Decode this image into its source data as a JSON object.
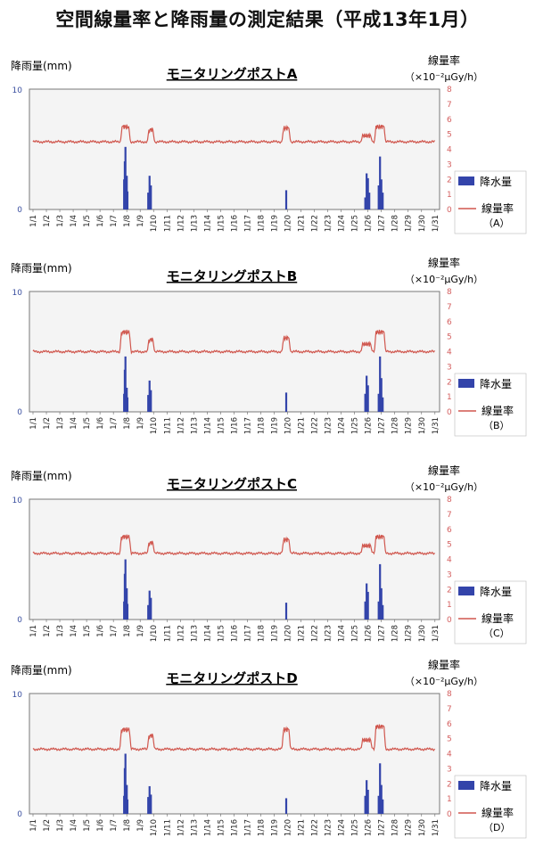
{
  "page_title": "空間線量率と降雨量の測定結果（平成13年1月）",
  "colors": {
    "rain": "#3344aa",
    "dose": "#d0574e",
    "plot_border": "#777777"
  },
  "chart_data": [
    {
      "type": "bar+line",
      "title": "モニタリングポストA",
      "ylabel_left": "降雨量(mm)",
      "ylabel_right_line1": "線量率",
      "ylabel_right_line2": "（×10⁻²μGy/h）",
      "left_ticks": [
        "10",
        "0"
      ],
      "left_ylim": [
        0,
        10
      ],
      "right_ylim": [
        0,
        8
      ],
      "right_ticks": [
        "8",
        "7",
        "6",
        "5",
        "4",
        "3",
        "2",
        "1",
        "0"
      ],
      "x_ticks": [
        "1/1",
        "1/2",
        "1/3",
        "1/4",
        "1/5",
        "1/6",
        "1/7",
        "1/8",
        "1/9",
        "1/10",
        "1/11",
        "1/12",
        "1/13",
        "1/14",
        "1/15",
        "1/16",
        "1/17",
        "1/18",
        "1/19",
        "1/20",
        "1/21",
        "1/22",
        "1/23",
        "1/24",
        "1/25",
        "1/26",
        "1/27",
        "1/28",
        "1/29",
        "1/30",
        "1/31"
      ],
      "legend_rain": "降水量",
      "legend_dose": "線量率",
      "legend_sub": "（A）",
      "rain": [
        [
          7.8,
          2.5
        ],
        [
          7.85,
          4.0
        ],
        [
          7.9,
          5.2
        ],
        [
          8.0,
          2.8
        ],
        [
          8.05,
          1.5
        ],
        [
          9.6,
          1.4
        ],
        [
          9.7,
          2.8
        ],
        [
          9.8,
          2.0
        ],
        [
          19.9,
          1.6
        ],
        [
          25.8,
          1.0
        ],
        [
          25.9,
          3.0
        ],
        [
          26.0,
          2.6
        ],
        [
          26.1,
          1.4
        ],
        [
          26.8,
          2.0
        ],
        [
          26.9,
          4.4
        ],
        [
          27.0,
          2.5
        ],
        [
          27.1,
          1.4
        ]
      ],
      "dose_base": 4.5,
      "dose_peaks": [
        [
          7.9,
          5.5,
          0.25
        ],
        [
          9.8,
          5.3,
          0.15
        ],
        [
          19.9,
          5.4,
          0.2
        ],
        [
          25.9,
          4.9,
          0.3
        ],
        [
          26.9,
          5.5,
          0.3
        ]
      ]
    },
    {
      "type": "bar+line",
      "title": "モニタリングポストB",
      "ylabel_left": "降雨量(mm)",
      "ylabel_right_line1": "線量率",
      "ylabel_right_line2": "（×10⁻²μGy/h）",
      "left_ticks": [
        "10",
        "0"
      ],
      "left_ylim": [
        0,
        10
      ],
      "right_ylim": [
        0,
        8
      ],
      "right_ticks": [
        "8",
        "7",
        "6",
        "5",
        "4",
        "3",
        "2",
        "1",
        "0"
      ],
      "x_ticks": [
        "1/1",
        "1/2",
        "1/3",
        "1/4",
        "1/5",
        "1/6",
        "1/7",
        "1/8",
        "1/9",
        "1/10",
        "1/11",
        "1/12",
        "1/13",
        "1/14",
        "1/15",
        "1/16",
        "1/17",
        "1/18",
        "1/19",
        "1/20",
        "1/21",
        "1/22",
        "1/23",
        "1/24",
        "1/25",
        "1/26",
        "1/27",
        "1/28",
        "1/29",
        "1/30",
        "1/31"
      ],
      "legend_rain": "降水量",
      "legend_dose": "線量率",
      "legend_sub": "（B）",
      "rain": [
        [
          7.8,
          1.5
        ],
        [
          7.85,
          3.5
        ],
        [
          7.9,
          4.6
        ],
        [
          8.0,
          2.0
        ],
        [
          8.05,
          1.2
        ],
        [
          9.6,
          1.4
        ],
        [
          9.7,
          2.6
        ],
        [
          9.8,
          1.8
        ],
        [
          19.9,
          1.6
        ],
        [
          25.8,
          1.5
        ],
        [
          25.9,
          3.0
        ],
        [
          26.0,
          2.2
        ],
        [
          26.8,
          1.5
        ],
        [
          26.9,
          4.6
        ],
        [
          27.0,
          2.8
        ],
        [
          27.1,
          1.2
        ]
      ],
      "dose_base": 4.0,
      "dose_peaks": [
        [
          7.9,
          5.3,
          0.3
        ],
        [
          9.8,
          4.8,
          0.15
        ],
        [
          19.9,
          4.9,
          0.2
        ],
        [
          25.9,
          4.5,
          0.3
        ],
        [
          26.9,
          5.3,
          0.3
        ]
      ]
    },
    {
      "type": "bar+line",
      "title": "モニタリングポストC",
      "ylabel_left": "降雨量(mm)",
      "ylabel_right_line1": "線量率",
      "ylabel_right_line2": "（×10⁻²μGy/h）",
      "left_ticks": [
        "10",
        "0"
      ],
      "left_ylim": [
        0,
        10
      ],
      "right_ylim": [
        0,
        8
      ],
      "right_ticks": [
        "8",
        "7",
        "6",
        "5",
        "4",
        "3",
        "2",
        "1",
        "0"
      ],
      "x_ticks": [
        "1/1",
        "1/2",
        "1/3",
        "1/4",
        "1/5",
        "1/6",
        "1/7",
        "1/8",
        "1/9",
        "1/10",
        "1/11",
        "1/12",
        "1/13",
        "1/14",
        "1/15",
        "1/16",
        "1/17",
        "1/18",
        "1/19",
        "1/20",
        "1/21",
        "1/22",
        "1/23",
        "1/24",
        "1/25",
        "1/26",
        "1/27",
        "1/28",
        "1/29",
        "1/30",
        "1/31"
      ],
      "legend_rain": "降水量",
      "legend_dose": "線量率",
      "legend_sub": "（C）",
      "rain": [
        [
          7.8,
          1.5
        ],
        [
          7.85,
          3.8
        ],
        [
          7.9,
          5.0
        ],
        [
          8.0,
          2.6
        ],
        [
          8.05,
          1.3
        ],
        [
          9.6,
          1.2
        ],
        [
          9.7,
          2.4
        ],
        [
          9.8,
          1.8
        ],
        [
          19.9,
          1.4
        ],
        [
          25.8,
          1.5
        ],
        [
          25.9,
          3.0
        ],
        [
          26.0,
          2.3
        ],
        [
          26.8,
          1.5
        ],
        [
          26.9,
          4.6
        ],
        [
          27.0,
          2.6
        ],
        [
          27.1,
          1.2
        ]
      ],
      "dose_base": 4.4,
      "dose_peaks": [
        [
          7.9,
          5.5,
          0.3
        ],
        [
          9.8,
          5.1,
          0.15
        ],
        [
          19.9,
          5.3,
          0.2
        ],
        [
          25.9,
          4.9,
          0.3
        ],
        [
          26.9,
          5.5,
          0.3
        ]
      ]
    },
    {
      "type": "bar+line",
      "title": "モニタリングポストD",
      "ylabel_left": "降雨量(mm)",
      "ylabel_right_line1": "線量率",
      "ylabel_right_line2": "（×10⁻²μGy/h）",
      "left_ticks": [
        "10",
        "0"
      ],
      "left_ylim": [
        0,
        10
      ],
      "right_ylim": [
        0,
        8
      ],
      "right_ticks": [
        "8",
        "7",
        "6",
        "5",
        "4",
        "3",
        "2",
        "1",
        "0"
      ],
      "x_ticks": [
        "1/1",
        "1/2",
        "1/3",
        "1/4",
        "1/5",
        "1/6",
        "1/7",
        "1/8",
        "1/9",
        "1/10",
        "1/11",
        "1/12",
        "1/13",
        "1/14",
        "1/15",
        "1/16",
        "1/17",
        "1/18",
        "1/19",
        "1/20",
        "1/21",
        "1/22",
        "1/23",
        "1/24",
        "1/25",
        "1/26",
        "1/27",
        "1/28",
        "1/29",
        "1/30",
        "1/31"
      ],
      "legend_rain": "降水量",
      "legend_dose": "線量率",
      "legend_sub": "（D）",
      "rain": [
        [
          7.8,
          1.5
        ],
        [
          7.85,
          3.8
        ],
        [
          7.9,
          5.0
        ],
        [
          8.0,
          2.4
        ],
        [
          8.05,
          1.2
        ],
        [
          9.6,
          1.4
        ],
        [
          9.7,
          2.3
        ],
        [
          9.8,
          1.6
        ],
        [
          19.9,
          1.3
        ],
        [
          25.8,
          1.5
        ],
        [
          25.9,
          2.8
        ],
        [
          26.0,
          2.0
        ],
        [
          26.8,
          1.5
        ],
        [
          26.9,
          4.2
        ],
        [
          27.0,
          2.4
        ],
        [
          27.1,
          1.2
        ]
      ],
      "dose_base": 4.3,
      "dose_peaks": [
        [
          7.9,
          5.6,
          0.3
        ],
        [
          9.8,
          5.2,
          0.15
        ],
        [
          19.9,
          5.6,
          0.2
        ],
        [
          25.9,
          4.9,
          0.3
        ],
        [
          26.9,
          5.8,
          0.3
        ]
      ]
    }
  ]
}
